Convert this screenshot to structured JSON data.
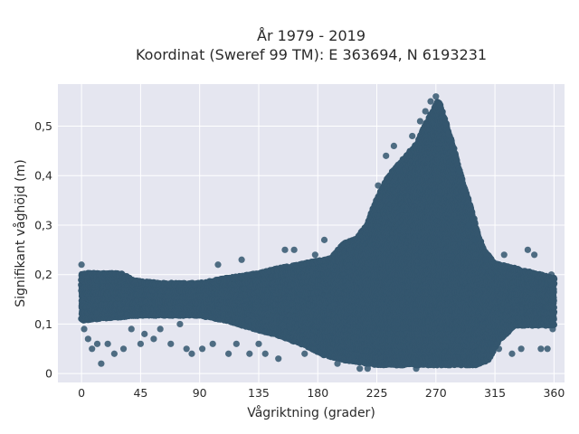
{
  "chart_data": {
    "type": "scatter",
    "title_line1": "År 1979 - 2019",
    "title_line2": "Koordinat (Sweref 99 TM): E 363694, N 6193231",
    "xlabel": "Vågriktning (grader)",
    "ylabel": "Signifikant våghöjd (m)",
    "xlim": [
      -18,
      368
    ],
    "ylim": [
      -0.018,
      0.585
    ],
    "x_ticks": [
      {
        "value": 0,
        "label": "0"
      },
      {
        "value": 45,
        "label": "45"
      },
      {
        "value": 90,
        "label": "90"
      },
      {
        "value": 135,
        "label": "135"
      },
      {
        "value": 180,
        "label": "180"
      },
      {
        "value": 225,
        "label": "225"
      },
      {
        "value": 270,
        "label": "270"
      },
      {
        "value": 315,
        "label": "315"
      },
      {
        "value": 360,
        "label": "360"
      }
    ],
    "y_ticks": [
      {
        "value": 0,
        "label": "0"
      },
      {
        "value": 0.1,
        "label": "0,1"
      },
      {
        "value": 0.2,
        "label": "0,2"
      },
      {
        "value": 0.3,
        "label": "0,3"
      },
      {
        "value": 0.4,
        "label": "0,4"
      },
      {
        "value": 0.5,
        "label": "0,5"
      }
    ],
    "grid": true,
    "marker_color": "#34566e",
    "background_color": "#e5e6f0",
    "envelope_upper": [
      [
        0,
        0.2
      ],
      [
        10,
        0.2
      ],
      [
        30,
        0.2
      ],
      [
        40,
        0.185
      ],
      [
        60,
        0.18
      ],
      [
        90,
        0.18
      ],
      [
        110,
        0.19
      ],
      [
        135,
        0.2
      ],
      [
        150,
        0.21
      ],
      [
        170,
        0.22
      ],
      [
        190,
        0.23
      ],
      [
        200,
        0.26
      ],
      [
        210,
        0.27
      ],
      [
        218,
        0.3
      ],
      [
        225,
        0.35
      ],
      [
        235,
        0.4
      ],
      [
        245,
        0.43
      ],
      [
        255,
        0.46
      ],
      [
        262,
        0.5
      ],
      [
        268,
        0.53
      ],
      [
        272,
        0.55
      ],
      [
        278,
        0.5
      ],
      [
        285,
        0.44
      ],
      [
        292,
        0.37
      ],
      [
        298,
        0.32
      ],
      [
        302,
        0.28
      ],
      [
        306,
        0.25
      ],
      [
        315,
        0.22
      ],
      [
        330,
        0.21
      ],
      [
        345,
        0.2
      ],
      [
        360,
        0.19
      ]
    ],
    "envelope_lower": [
      [
        0,
        0.11
      ],
      [
        20,
        0.115
      ],
      [
        45,
        0.12
      ],
      [
        70,
        0.12
      ],
      [
        90,
        0.12
      ],
      [
        110,
        0.11
      ],
      [
        135,
        0.09
      ],
      [
        150,
        0.08
      ],
      [
        170,
        0.06
      ],
      [
        185,
        0.04
      ],
      [
        200,
        0.03
      ],
      [
        225,
        0.02
      ],
      [
        270,
        0.02
      ],
      [
        300,
        0.02
      ],
      [
        310,
        0.03
      ],
      [
        318,
        0.07
      ],
      [
        330,
        0.1
      ],
      [
        345,
        0.1
      ],
      [
        360,
        0.1
      ]
    ],
    "outliers": [
      {
        "x": 0,
        "y": 0.22
      },
      {
        "x": 2,
        "y": 0.09
      },
      {
        "x": 5,
        "y": 0.07
      },
      {
        "x": 8,
        "y": 0.05
      },
      {
        "x": 12,
        "y": 0.06
      },
      {
        "x": 15,
        "y": 0.02
      },
      {
        "x": 20,
        "y": 0.06
      },
      {
        "x": 25,
        "y": 0.04
      },
      {
        "x": 32,
        "y": 0.05
      },
      {
        "x": 38,
        "y": 0.09
      },
      {
        "x": 45,
        "y": 0.06
      },
      {
        "x": 48,
        "y": 0.08
      },
      {
        "x": 55,
        "y": 0.07
      },
      {
        "x": 60,
        "y": 0.09
      },
      {
        "x": 68,
        "y": 0.06
      },
      {
        "x": 75,
        "y": 0.1
      },
      {
        "x": 80,
        "y": 0.05
      },
      {
        "x": 84,
        "y": 0.04
      },
      {
        "x": 92,
        "y": 0.05
      },
      {
        "x": 100,
        "y": 0.06
      },
      {
        "x": 104,
        "y": 0.22
      },
      {
        "x": 112,
        "y": 0.04
      },
      {
        "x": 118,
        "y": 0.06
      },
      {
        "x": 122,
        "y": 0.23
      },
      {
        "x": 128,
        "y": 0.04
      },
      {
        "x": 135,
        "y": 0.06
      },
      {
        "x": 140,
        "y": 0.04
      },
      {
        "x": 150,
        "y": 0.03
      },
      {
        "x": 155,
        "y": 0.25
      },
      {
        "x": 162,
        "y": 0.25
      },
      {
        "x": 170,
        "y": 0.04
      },
      {
        "x": 178,
        "y": 0.24
      },
      {
        "x": 185,
        "y": 0.27
      },
      {
        "x": 195,
        "y": 0.02
      },
      {
        "x": 212,
        "y": 0.01
      },
      {
        "x": 218,
        "y": 0.01
      },
      {
        "x": 226,
        "y": 0.38
      },
      {
        "x": 232,
        "y": 0.44
      },
      {
        "x": 238,
        "y": 0.46
      },
      {
        "x": 242,
        "y": 0.41
      },
      {
        "x": 252,
        "y": 0.48
      },
      {
        "x": 255,
        "y": 0.01
      },
      {
        "x": 258,
        "y": 0.51
      },
      {
        "x": 262,
        "y": 0.53
      },
      {
        "x": 266,
        "y": 0.55
      },
      {
        "x": 270,
        "y": 0.56
      },
      {
        "x": 275,
        "y": 0.52
      },
      {
        "x": 282,
        "y": 0.47
      },
      {
        "x": 288,
        "y": 0.41
      },
      {
        "x": 295,
        "y": 0.3
      },
      {
        "x": 300,
        "y": 0.27
      },
      {
        "x": 308,
        "y": 0.23
      },
      {
        "x": 312,
        "y": 0.06
      },
      {
        "x": 318,
        "y": 0.05
      },
      {
        "x": 322,
        "y": 0.24
      },
      {
        "x": 328,
        "y": 0.04
      },
      {
        "x": 335,
        "y": 0.05
      },
      {
        "x": 340,
        "y": 0.25
      },
      {
        "x": 345,
        "y": 0.24
      },
      {
        "x": 350,
        "y": 0.05
      },
      {
        "x": 355,
        "y": 0.05
      },
      {
        "x": 358,
        "y": 0.2
      },
      {
        "x": 359,
        "y": 0.09
      }
    ]
  }
}
